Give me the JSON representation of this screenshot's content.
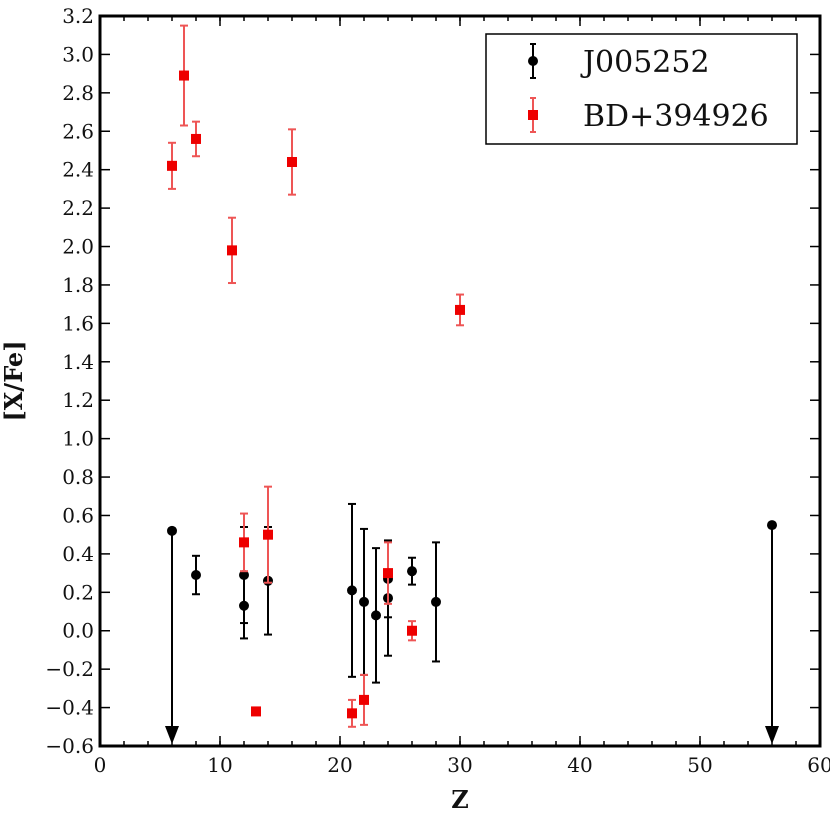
{
  "chart_data": {
    "type": "scatter",
    "title": "",
    "xlabel": "Z",
    "ylabel": "[X/Fe]",
    "xlim": [
      0,
      60
    ],
    "ylim": [
      -0.6,
      3.2
    ],
    "x_ticks": [
      0,
      10,
      20,
      30,
      40,
      50,
      60
    ],
    "y_ticks": [
      -0.6,
      -0.4,
      -0.2,
      0.0,
      0.2,
      0.4,
      0.6,
      0.8,
      1.0,
      1.2,
      1.4,
      1.6,
      1.8,
      2.0,
      2.2,
      2.4,
      2.6,
      2.8,
      3.0,
      3.2
    ],
    "x_tick_labels": [
      "0",
      "10",
      "20",
      "30",
      "40",
      "50",
      "60"
    ],
    "y_tick_labels": [
      "−0.6",
      "−0.4",
      "−0.2",
      "0.0",
      "0.2",
      "0.4",
      "0.6",
      "0.8",
      "1.0",
      "1.2",
      "1.4",
      "1.6",
      "1.8",
      "2.0",
      "2.2",
      "2.4",
      "2.6",
      "2.8",
      "3.0",
      "3.2"
    ],
    "grid": false,
    "legend_position": "top-right",
    "series": [
      {
        "name": "J005252",
        "marker": "circle",
        "color": "#000000",
        "points": [
          {
            "x": 6,
            "y": 0.52,
            "upper_limit": true
          },
          {
            "x": 8,
            "y": 0.29,
            "err": 0.1
          },
          {
            "x": 12,
            "y": 0.29,
            "err": 0.25
          },
          {
            "x": 12,
            "y": 0.13,
            "err": 0.17
          },
          {
            "x": 14,
            "y": 0.26,
            "err": 0.28
          },
          {
            "x": 21,
            "y": 0.21,
            "err": 0.45
          },
          {
            "x": 22,
            "y": 0.15,
            "err": 0.38
          },
          {
            "x": 23,
            "y": 0.08,
            "err": 0.35
          },
          {
            "x": 24,
            "y": 0.27,
            "err": 0.2
          },
          {
            "x": 24,
            "y": 0.17,
            "err": 0.3
          },
          {
            "x": 26,
            "y": 0.31,
            "err": 0.07
          },
          {
            "x": 28,
            "y": 0.15,
            "err": 0.31
          },
          {
            "x": 56,
            "y": 0.55,
            "upper_limit": true
          }
        ]
      },
      {
        "name": "BD+394926",
        "marker": "square",
        "color": "#ee0000",
        "points": [
          {
            "x": 6,
            "y": 2.42,
            "err": 0.12
          },
          {
            "x": 7,
            "y": 2.89,
            "err": 0.26
          },
          {
            "x": 8,
            "y": 2.56,
            "err": 0.09
          },
          {
            "x": 11,
            "y": 1.98,
            "err": 0.17
          },
          {
            "x": 16,
            "y": 2.44,
            "err": 0.17
          },
          {
            "x": 30,
            "y": 1.67,
            "err": 0.08
          },
          {
            "x": 12,
            "y": 0.46,
            "err": 0.15
          },
          {
            "x": 14,
            "y": 0.5,
            "err": 0.25
          },
          {
            "x": 13,
            "y": -0.42,
            "err": 0.0
          },
          {
            "x": 21,
            "y": -0.43,
            "err": 0.07
          },
          {
            "x": 22,
            "y": -0.36,
            "err": 0.13
          },
          {
            "x": 24,
            "y": 0.3,
            "err": 0.16
          },
          {
            "x": 26,
            "y": 0.0,
            "err": 0.05
          }
        ]
      }
    ]
  }
}
